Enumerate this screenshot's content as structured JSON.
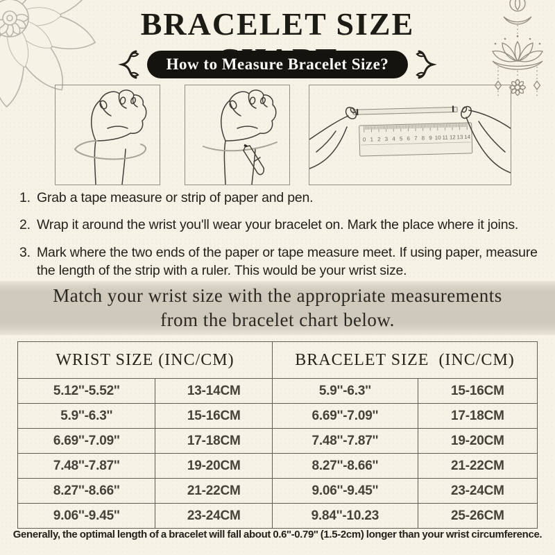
{
  "header": {
    "title": "BRACELET SIZE CHART",
    "badge": "How to Measure Bracelet Size?"
  },
  "icons": {
    "left_decor": "lotus-mandala-icon",
    "right_decor": "hanging-lotus-icon",
    "badge_flourish": "flourish-bracket-icon"
  },
  "illustrations": {
    "box1": "wrap-tape-around-wrist",
    "box2": "mark-wrist-with-pen",
    "box3": "measure-strip-with-ruler",
    "ruler_numbers": [
      "0",
      "1",
      "2",
      "3",
      "4",
      "5",
      "6",
      "7",
      "8",
      "9",
      "10",
      "11",
      "12",
      "13",
      "14"
    ]
  },
  "steps": [
    {
      "num": "1.",
      "text": "Grab a tape measure or strip of paper and pen."
    },
    {
      "num": "2.",
      "text": "Wrap it around the wrist you'll wear your bracelet on. Mark the place where it joins."
    },
    {
      "num": "3.",
      "text": "Mark where the two ends of the paper or tape measure meet. If using paper, measure the length of the strip with a ruler. This would be your wrist size."
    }
  ],
  "banner": {
    "line1": "Match your wrist size with the appropriate measurements",
    "line2": "from the bracelet chart below."
  },
  "size_table": {
    "headers": [
      "WRIST SIZE (INC/CM)",
      "BRACELET SIZE  (INC/CM)"
    ],
    "rows": [
      [
        "5.12''-5.52''",
        "13-14CM",
        "5.9''-6.3''",
        "15-16CM"
      ],
      [
        "5.9''-6.3''",
        "15-16CM",
        "6.69''-7.09''",
        "17-18CM"
      ],
      [
        "6.69''-7.09''",
        "17-18CM",
        "7.48''-7.87''",
        "19-20CM"
      ],
      [
        "7.48''-7.87''",
        "19-20CM",
        "8.27''-8.66''",
        "21-22CM"
      ],
      [
        "8.27''-8.66''",
        "21-22CM",
        "9.06''-9.45''",
        "23-24CM"
      ],
      [
        "9.06''-9.45''",
        "23-24CM",
        "9.84''-10.23",
        "25-26CM"
      ]
    ]
  },
  "footer_note": "Generally, the optimal length of a bracelet will fall about 0.6''-0.79'' (1.5-2cm) longer than your wrist circumference.",
  "colors": {
    "background": "#f6f2e5",
    "ink": "#1e1c17",
    "badge_bg": "#15130d",
    "banner_bg": "#cfc9bb",
    "decor_gray_left": "#b8b4a9",
    "decor_gray_right": "#8f8a7d",
    "table_border": "#605c52"
  }
}
